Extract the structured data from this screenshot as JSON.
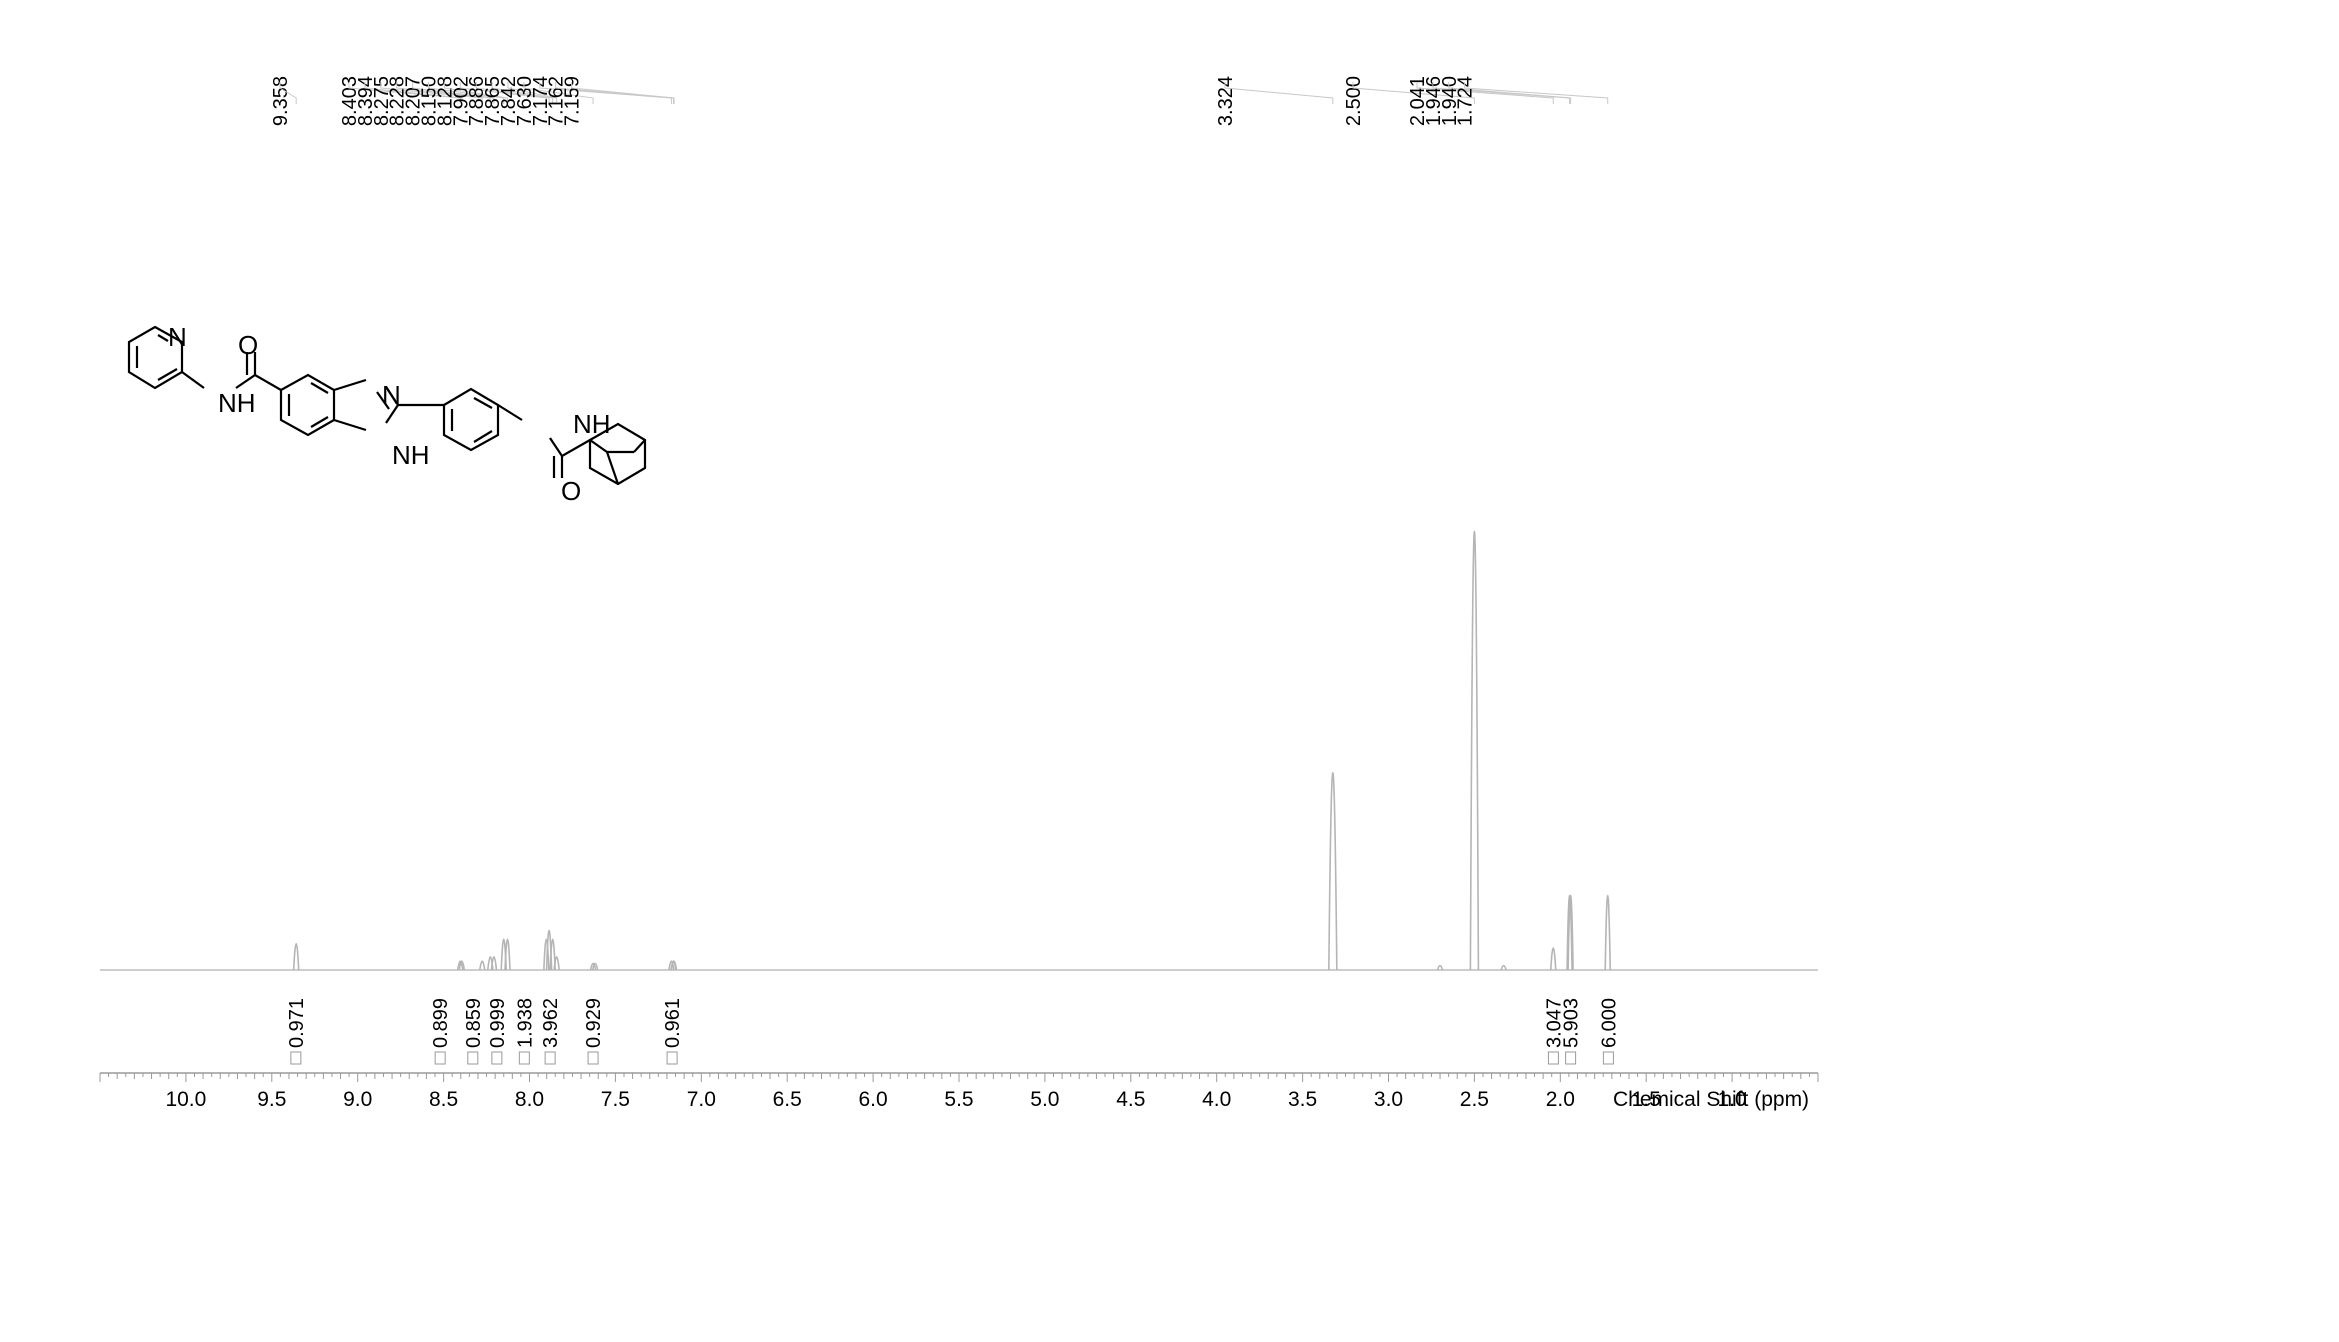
{
  "chart_data": {
    "type": "line",
    "xlabel": "Chemical Shift (ppm)",
    "xlim": [
      10.5,
      0.5
    ],
    "x_ticks": [
      "10.0",
      "9.5",
      "9.0",
      "8.5",
      "8.0",
      "7.5",
      "7.0",
      "6.5",
      "6.0",
      "5.5",
      "5.0",
      "4.5",
      "4.0",
      "3.5",
      "3.0",
      "2.5",
      "2.0",
      "1.5",
      "1.0"
    ],
    "peak_labels": [
      "9.358",
      "8.403",
      "8.394",
      "8.275",
      "8.228",
      "8.207",
      "8.150",
      "8.128",
      "7.902",
      "7.886",
      "7.865",
      "7.842",
      "7.630",
      "7.174",
      "7.162",
      "7.159",
      "3.324",
      "2.500",
      "2.041",
      "1.946",
      "1.940",
      "1.724"
    ],
    "integrals": [
      {
        "x": 9.36,
        "value": "0.971"
      },
      {
        "x": 8.52,
        "value": "0.899"
      },
      {
        "x": 8.33,
        "value": "0.859"
      },
      {
        "x": 8.19,
        "value": "0.999"
      },
      {
        "x": 8.03,
        "value": "1.938"
      },
      {
        "x": 7.88,
        "value": "3.962"
      },
      {
        "x": 7.63,
        "value": "0.929"
      },
      {
        "x": 7.17,
        "value": "0.961"
      },
      {
        "x": 2.04,
        "value": "3.047"
      },
      {
        "x": 1.94,
        "value": "5.903"
      },
      {
        "x": 1.72,
        "value": "6.000"
      }
    ],
    "peaks": [
      {
        "x": 9.358,
        "h": 0.06
      },
      {
        "x": 8.403,
        "h": 0.02
      },
      {
        "x": 8.394,
        "h": 0.02
      },
      {
        "x": 8.275,
        "h": 0.02
      },
      {
        "x": 8.228,
        "h": 0.03
      },
      {
        "x": 8.207,
        "h": 0.03
      },
      {
        "x": 8.15,
        "h": 0.07
      },
      {
        "x": 8.128,
        "h": 0.07
      },
      {
        "x": 7.902,
        "h": 0.07
      },
      {
        "x": 7.886,
        "h": 0.09
      },
      {
        "x": 7.865,
        "h": 0.07
      },
      {
        "x": 7.842,
        "h": 0.03
      },
      {
        "x": 7.63,
        "h": 0.015
      },
      {
        "x": 7.618,
        "h": 0.015
      },
      {
        "x": 7.174,
        "h": 0.02
      },
      {
        "x": 7.162,
        "h": 0.02
      },
      {
        "x": 7.159,
        "h": 0.02
      },
      {
        "x": 3.324,
        "h": 0.45
      },
      {
        "x": 2.7,
        "h": 0.01
      },
      {
        "x": 2.5,
        "h": 1.0
      },
      {
        "x": 2.33,
        "h": 0.01
      },
      {
        "x": 2.041,
        "h": 0.05
      },
      {
        "x": 1.946,
        "h": 0.17
      },
      {
        "x": 1.94,
        "h": 0.17
      },
      {
        "x": 1.724,
        "h": 0.17
      }
    ]
  },
  "molecule": {
    "atoms": [
      "N",
      "O",
      "NH",
      "N",
      "NH",
      "NH",
      "O"
    ]
  }
}
